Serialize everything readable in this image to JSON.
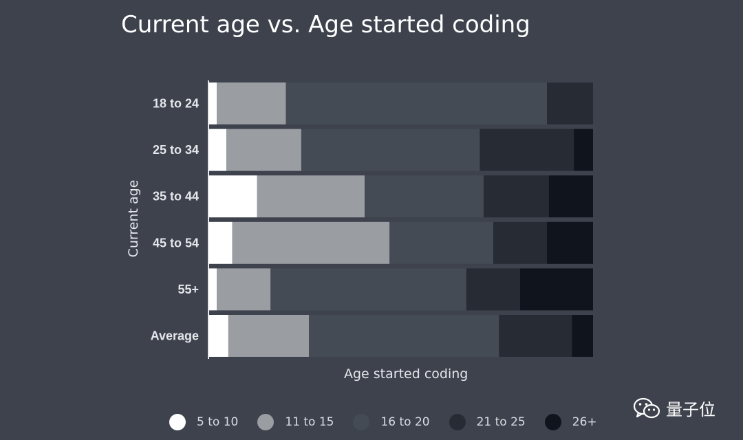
{
  "chart_data": {
    "type": "bar",
    "orientation": "horizontal",
    "stacked": true,
    "normalized": true,
    "title": "Current age vs. Age started coding",
    "xlabel": "Age started coding",
    "ylabel": "Current age",
    "xlim": [
      0,
      100
    ],
    "categories": [
      "18 to 24",
      "25 to 34",
      "35 to 44",
      "45 to 54",
      "55+",
      "Average"
    ],
    "series": [
      {
        "name": "5 to 10",
        "color": "#ffffff",
        "values": [
          2,
          4.5,
          12.5,
          6,
          2,
          5
        ]
      },
      {
        "name": "11 to 15",
        "color": "#9a9da2",
        "values": [
          18,
          19.5,
          28,
          41,
          14,
          21
        ]
      },
      {
        "name": "16 to 20",
        "color": "#454b55",
        "values": [
          68,
          46.5,
          31,
          27,
          51,
          49.5
        ]
      },
      {
        "name": "21 to 25",
        "color": "#262b34",
        "values": [
          12,
          24.5,
          17,
          14,
          14,
          19
        ]
      },
      {
        "name": "26+",
        "color": "#10141c",
        "values": [
          0,
          5,
          11.5,
          12,
          19,
          5.5
        ]
      }
    ],
    "legend_position": "bottom",
    "grid": false
  },
  "watermark": {
    "text": "量子位",
    "icon": "wechat-icon"
  }
}
